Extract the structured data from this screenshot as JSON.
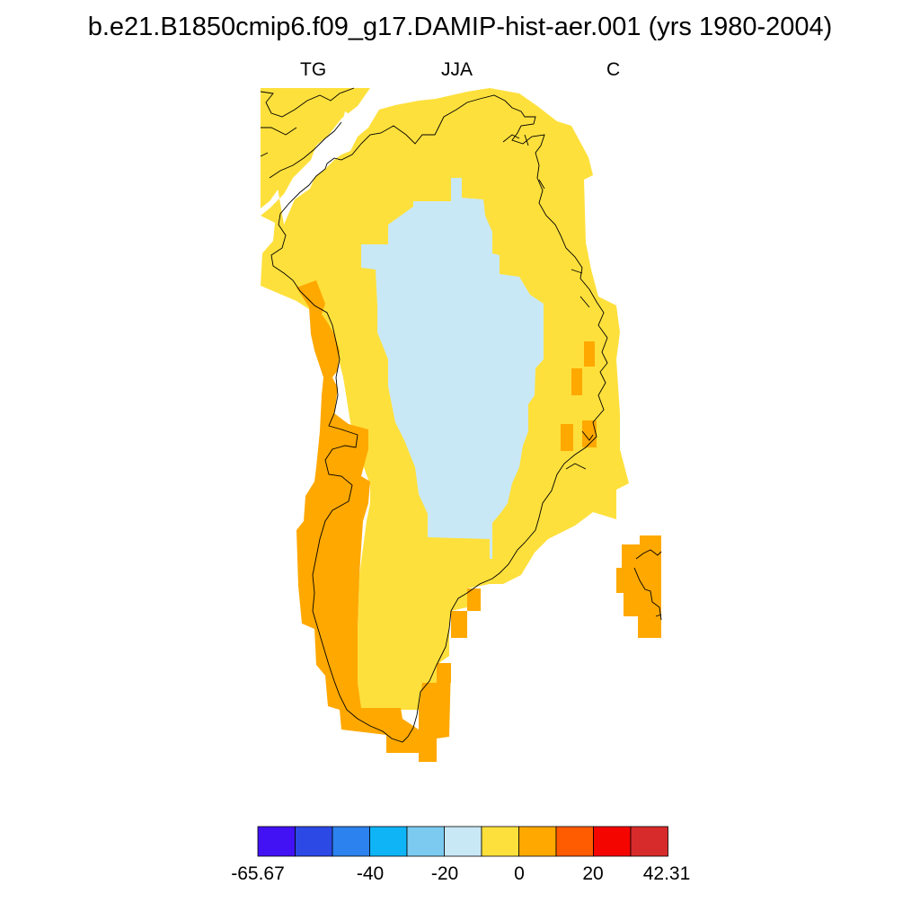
{
  "title": "b.e21.B1850cmip6.f09_g17.DAMIP-hist-aer.001 (yrs 1980-2004)",
  "subtitle": {
    "left": "TG",
    "center": "JJA",
    "right": "C"
  },
  "colorbar": {
    "colors": [
      "#4212f5",
      "#2c49e6",
      "#2c82ee",
      "#0fb4f7",
      "#7ccaf0",
      "#c9e8f6",
      "#fee03c",
      "#ffa800",
      "#ff5b00",
      "#f50500",
      "#d62b2a"
    ],
    "labels": [
      "-65.67",
      "-40",
      "-20",
      "0",
      "20",
      "42.31"
    ]
  },
  "map_colors": {
    "warm": "#fee03c",
    "warmer": "#ffa800",
    "cool": "#c9e8f6",
    "coast": "#000000"
  }
}
